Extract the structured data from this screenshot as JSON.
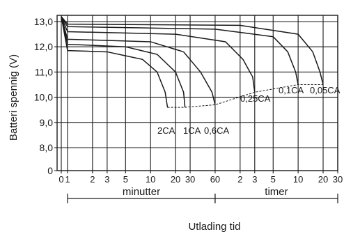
{
  "chart_data": {
    "type": "line",
    "title": "",
    "xlabel": "Utlading tid",
    "ylabel": "Batteri spennig (V)",
    "ylim": [
      0,
      13.5
    ],
    "y_ticks": [
      "0",
      "8,0",
      "9,0",
      "10,0",
      "11,0",
      "12,0",
      "13,0"
    ],
    "y_tick_values": [
      0,
      8,
      9,
      10,
      11,
      12,
      13
    ],
    "x_tick_labels": [
      "0",
      "1",
      "2",
      "3",
      "5",
      "10",
      "20",
      "30",
      "60",
      "2",
      "3",
      "5",
      "10",
      "20",
      "30"
    ],
    "x_tick_minutes": [
      0,
      1,
      2,
      3,
      5,
      10,
      20,
      30,
      60,
      120,
      180,
      300,
      600,
      1200,
      1800
    ],
    "x_scale": "logarithmic (minutes, then hours)",
    "x_segments": [
      {
        "label": "minutter",
        "from_minutes": 1,
        "to_minutes": 60
      },
      {
        "label": "timer",
        "from_minutes": 60,
        "to_minutes": 1800
      }
    ],
    "grid": true,
    "series": [
      {
        "name": "2CA",
        "x_minutes": [
          0,
          1,
          3,
          8,
          12,
          15,
          16
        ],
        "y": [
          13.2,
          11.85,
          11.8,
          11.5,
          11.0,
          10.2,
          9.6
        ]
      },
      {
        "name": "1CA",
        "x_minutes": [
          0,
          1,
          5,
          12,
          20,
          25,
          26
        ],
        "y": [
          13.2,
          12.1,
          12.0,
          11.7,
          11.0,
          10.2,
          9.6
        ]
      },
      {
        "name": "0,6CA",
        "x_minutes": [
          0,
          1,
          10,
          25,
          40,
          55,
          60
        ],
        "y": [
          13.2,
          12.3,
          12.2,
          11.8,
          11.0,
          10.2,
          9.7
        ]
      },
      {
        "name": "0,25CA",
        "x_minutes": [
          0,
          1,
          20,
          80,
          130,
          170,
          180
        ],
        "y": [
          13.2,
          12.6,
          12.5,
          12.2,
          11.5,
          10.8,
          10.2
        ]
      },
      {
        "name": "0,1CA",
        "x_minutes": [
          0,
          1,
          60,
          300,
          450,
          560,
          600
        ],
        "y": [
          13.2,
          12.8,
          12.7,
          12.4,
          11.8,
          11.0,
          10.5
        ]
      },
      {
        "name": "0,05CA",
        "x_minutes": [
          0,
          1,
          120,
          600,
          900,
          1100,
          1200
        ],
        "y": [
          13.2,
          12.9,
          12.85,
          12.5,
          11.8,
          11.0,
          10.5
        ]
      }
    ],
    "cutoff_line": {
      "x_minutes": [
        16,
        26,
        60,
        180,
        600,
        1200
      ],
      "y": [
        9.6,
        9.6,
        9.7,
        10.2,
        10.5,
        10.5
      ]
    },
    "annotations": [
      "2CA",
      "1CA",
      "0,6CA",
      "0,25CA",
      "0,1CA",
      "0,05CA"
    ]
  }
}
